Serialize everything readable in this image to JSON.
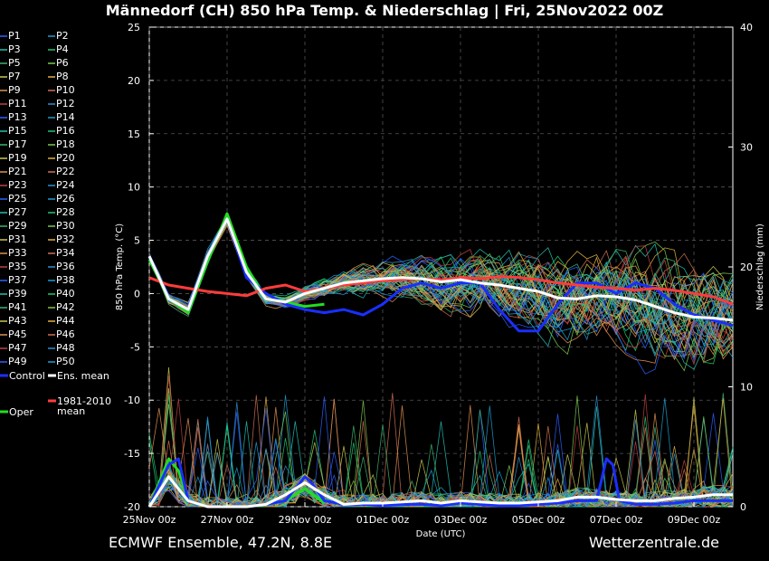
{
  "title": "Männedorf  (CH)  850 hPa Temp. & Niederschlag | Fri, 25Nov2022 00Z",
  "footer_left": "ECMWF Ensemble, 47.2N, 8.8E",
  "footer_right": "Wetterzentrale.de",
  "chart_data": {
    "type": "line",
    "title": "Männedorf  (CH)  850 hPa Temp. & Niederschlag | Fri, 25Nov2022 00Z",
    "xlabel": "Date (UTC)",
    "ylabel": "850 hPa Temp. (°C)",
    "y2label": "Niederschlag (mm)",
    "xlim": [
      0,
      360
    ],
    "x_unit": "hours since 25Nov2022 00Z",
    "ylim": [
      -20,
      25
    ],
    "y2lim": [
      0,
      40
    ],
    "yticks": [
      -20,
      -15,
      -10,
      -5,
      0,
      5,
      10,
      15,
      20,
      25
    ],
    "y2ticks": [
      0,
      10,
      20,
      30,
      40
    ],
    "xticks": [
      {
        "hour": 0,
        "label": "25Nov 00z"
      },
      {
        "hour": 48,
        "label": "27Nov 00z"
      },
      {
        "hour": 96,
        "label": "29Nov 00z"
      },
      {
        "hour": 144,
        "label": "01Dec 00z"
      },
      {
        "hour": 192,
        "label": "03Dec 00z"
      },
      {
        "hour": 240,
        "label": "05Dec 00z"
      },
      {
        "hour": 288,
        "label": "07Dec 00z"
      },
      {
        "hour": 336,
        "label": "09Dec 00z"
      }
    ],
    "grid": true,
    "legend_position": "left",
    "member_colors": [
      "#2a60ff",
      "#1a9fd0",
      "#20c0b0",
      "#1ec870",
      "#3cb371",
      "#7cc850",
      "#c8c850",
      "#e0b040",
      "#e09050",
      "#d07050",
      "#c04040",
      "#2d8fd0"
    ],
    "legend": [
      [
        "P1",
        "P2"
      ],
      [
        "P3",
        "P4"
      ],
      [
        "P5",
        "P6"
      ],
      [
        "P7",
        "P8"
      ],
      [
        "P9",
        "P10"
      ],
      [
        "P11",
        "P12"
      ],
      [
        "P13",
        "P14"
      ],
      [
        "P15",
        "P16"
      ],
      [
        "P17",
        "P18"
      ],
      [
        "P19",
        "P20"
      ],
      [
        "P21",
        "P22"
      ],
      [
        "P23",
        "P24"
      ],
      [
        "P25",
        "P26"
      ],
      [
        "P27",
        "P28"
      ],
      [
        "P29",
        "P30"
      ],
      [
        "P31",
        "P32"
      ],
      [
        "P33",
        "P34"
      ],
      [
        "P35",
        "P36"
      ],
      [
        "P37",
        "P38"
      ],
      [
        "P39",
        "P40"
      ],
      [
        "P41",
        "P42"
      ],
      [
        "P43",
        "P44"
      ],
      [
        "P45",
        "P46"
      ],
      [
        "P47",
        "P48"
      ],
      [
        "P49",
        "P50"
      ]
    ],
    "special_legend": [
      {
        "name": "Control",
        "color": "#1a2fff"
      },
      {
        "name": "Ens. mean",
        "color": "#ffffff"
      },
      {
        "name": "1981-2010 mean",
        "color": "#ff3c3c"
      },
      {
        "name": "Oper",
        "color": "#22dd22"
      }
    ],
    "ens_mean": {
      "color": "#ffffff",
      "x": [
        0,
        12,
        24,
        36,
        48,
        60,
        72,
        84,
        96,
        108,
        120,
        132,
        144,
        156,
        168,
        180,
        192,
        204,
        216,
        228,
        240,
        252,
        264,
        276,
        288,
        300,
        312,
        324,
        336,
        348,
        360
      ],
      "y": [
        3.5,
        -0.5,
        -1.5,
        3.5,
        7,
        2,
        -0.5,
        -0.8,
        0,
        0.5,
        1,
        1.2,
        1.4,
        1.5,
        1.4,
        1.1,
        1.3,
        1.0,
        0.8,
        0.5,
        0.2,
        -0.4,
        -0.5,
        -0.2,
        -0.3,
        -0.6,
        -1.2,
        -1.8,
        -2.2,
        -2.3,
        -2.5
      ]
    },
    "control": {
      "color": "#1a2fff",
      "x": [
        0,
        12,
        24,
        36,
        48,
        60,
        72,
        84,
        96,
        108,
        120,
        132,
        144,
        156,
        168,
        180,
        192,
        204,
        216,
        228,
        240,
        252,
        264,
        276,
        288,
        300,
        312,
        324,
        336,
        348,
        360
      ],
      "y": [
        3.5,
        -0.5,
        -1.5,
        3.5,
        7,
        1.5,
        0,
        -1,
        -1.5,
        -1.8,
        -1.5,
        -2,
        -1,
        0.5,
        1.0,
        0.5,
        1.0,
        1.0,
        -1.5,
        -3.5,
        -3.5,
        -1,
        1,
        1,
        0,
        1,
        0.5,
        -1,
        -2,
        -2.5,
        -3
      ]
    },
    "oper": {
      "color": "#22dd22",
      "x": [
        0,
        12,
        24,
        36,
        48,
        60,
        72,
        84,
        96,
        108
      ],
      "y": [
        3.2,
        -0.5,
        -1.8,
        3.0,
        7.5,
        2.5,
        -0.5,
        -0.8,
        -1.2,
        -1.0
      ]
    },
    "climate_mean": {
      "color": "#ff3c3c",
      "x": [
        0,
        12,
        24,
        36,
        48,
        60,
        72,
        84,
        96,
        108,
        120,
        132,
        144,
        156,
        168,
        180,
        192,
        204,
        216,
        228,
        240,
        252,
        264,
        276,
        288,
        300,
        312,
        324,
        336,
        348,
        360
      ],
      "y": [
        1.5,
        0.8,
        0.5,
        0.2,
        0.0,
        -0.2,
        0.5,
        0.8,
        0.2,
        0.5,
        0.8,
        1.0,
        1.2,
        1.3,
        1.4,
        1.3,
        1.5,
        1.4,
        1.6,
        1.5,
        1.3,
        1.0,
        0.8,
        0.6,
        0.5,
        0.3,
        0.5,
        0.3,
        0.0,
        -0.3,
        -1.0
      ]
    },
    "precip_mean_mm": {
      "color": "#ffffff",
      "x": [
        0,
        12,
        24,
        36,
        48,
        60,
        72,
        84,
        96,
        108,
        120,
        132,
        144,
        156,
        168,
        180,
        192,
        204,
        216,
        228,
        240,
        252,
        264,
        276,
        288,
        300,
        312,
        324,
        336,
        348,
        360
      ],
      "y": [
        0,
        2.5,
        0.5,
        0,
        0,
        0,
        0.2,
        1,
        2,
        1,
        0.2,
        0.3,
        0.3,
        0.4,
        0.5,
        0.3,
        0.5,
        0.4,
        0.3,
        0.3,
        0.4,
        0.5,
        0.8,
        0.8,
        0.6,
        0.5,
        0.5,
        0.7,
        0.8,
        1.0,
        1.0
      ]
    },
    "precip_control_mm": {
      "color": "#1a2fff",
      "x": [
        0,
        12,
        18,
        24,
        36,
        48,
        60,
        72,
        84,
        96,
        100,
        108,
        120,
        132,
        144,
        156,
        168,
        180,
        192,
        204,
        216,
        228,
        240,
        252,
        264,
        276,
        282,
        286,
        290,
        300,
        312,
        324,
        336,
        348,
        360
      ],
      "y": [
        0,
        3.5,
        4,
        0.5,
        0,
        0,
        0,
        0.2,
        0.5,
        2.5,
        2,
        0.5,
        0.2,
        0.2,
        0.1,
        0.2,
        0.2,
        0.1,
        0.3,
        0.2,
        0.1,
        0.1,
        0.2,
        0.3,
        0.5,
        0.5,
        4,
        3.5,
        0.5,
        0.2,
        0.2,
        0.3,
        0.5,
        0.5,
        0.5
      ]
    },
    "precip_oper_mm": {
      "color": "#22dd22",
      "x": [
        0,
        12,
        18,
        24,
        36,
        48,
        60,
        72,
        84,
        96,
        108
      ],
      "y": [
        0,
        4,
        3,
        0.5,
        0,
        0,
        0,
        0.2,
        0.5,
        1.5,
        0.3
      ]
    }
  }
}
